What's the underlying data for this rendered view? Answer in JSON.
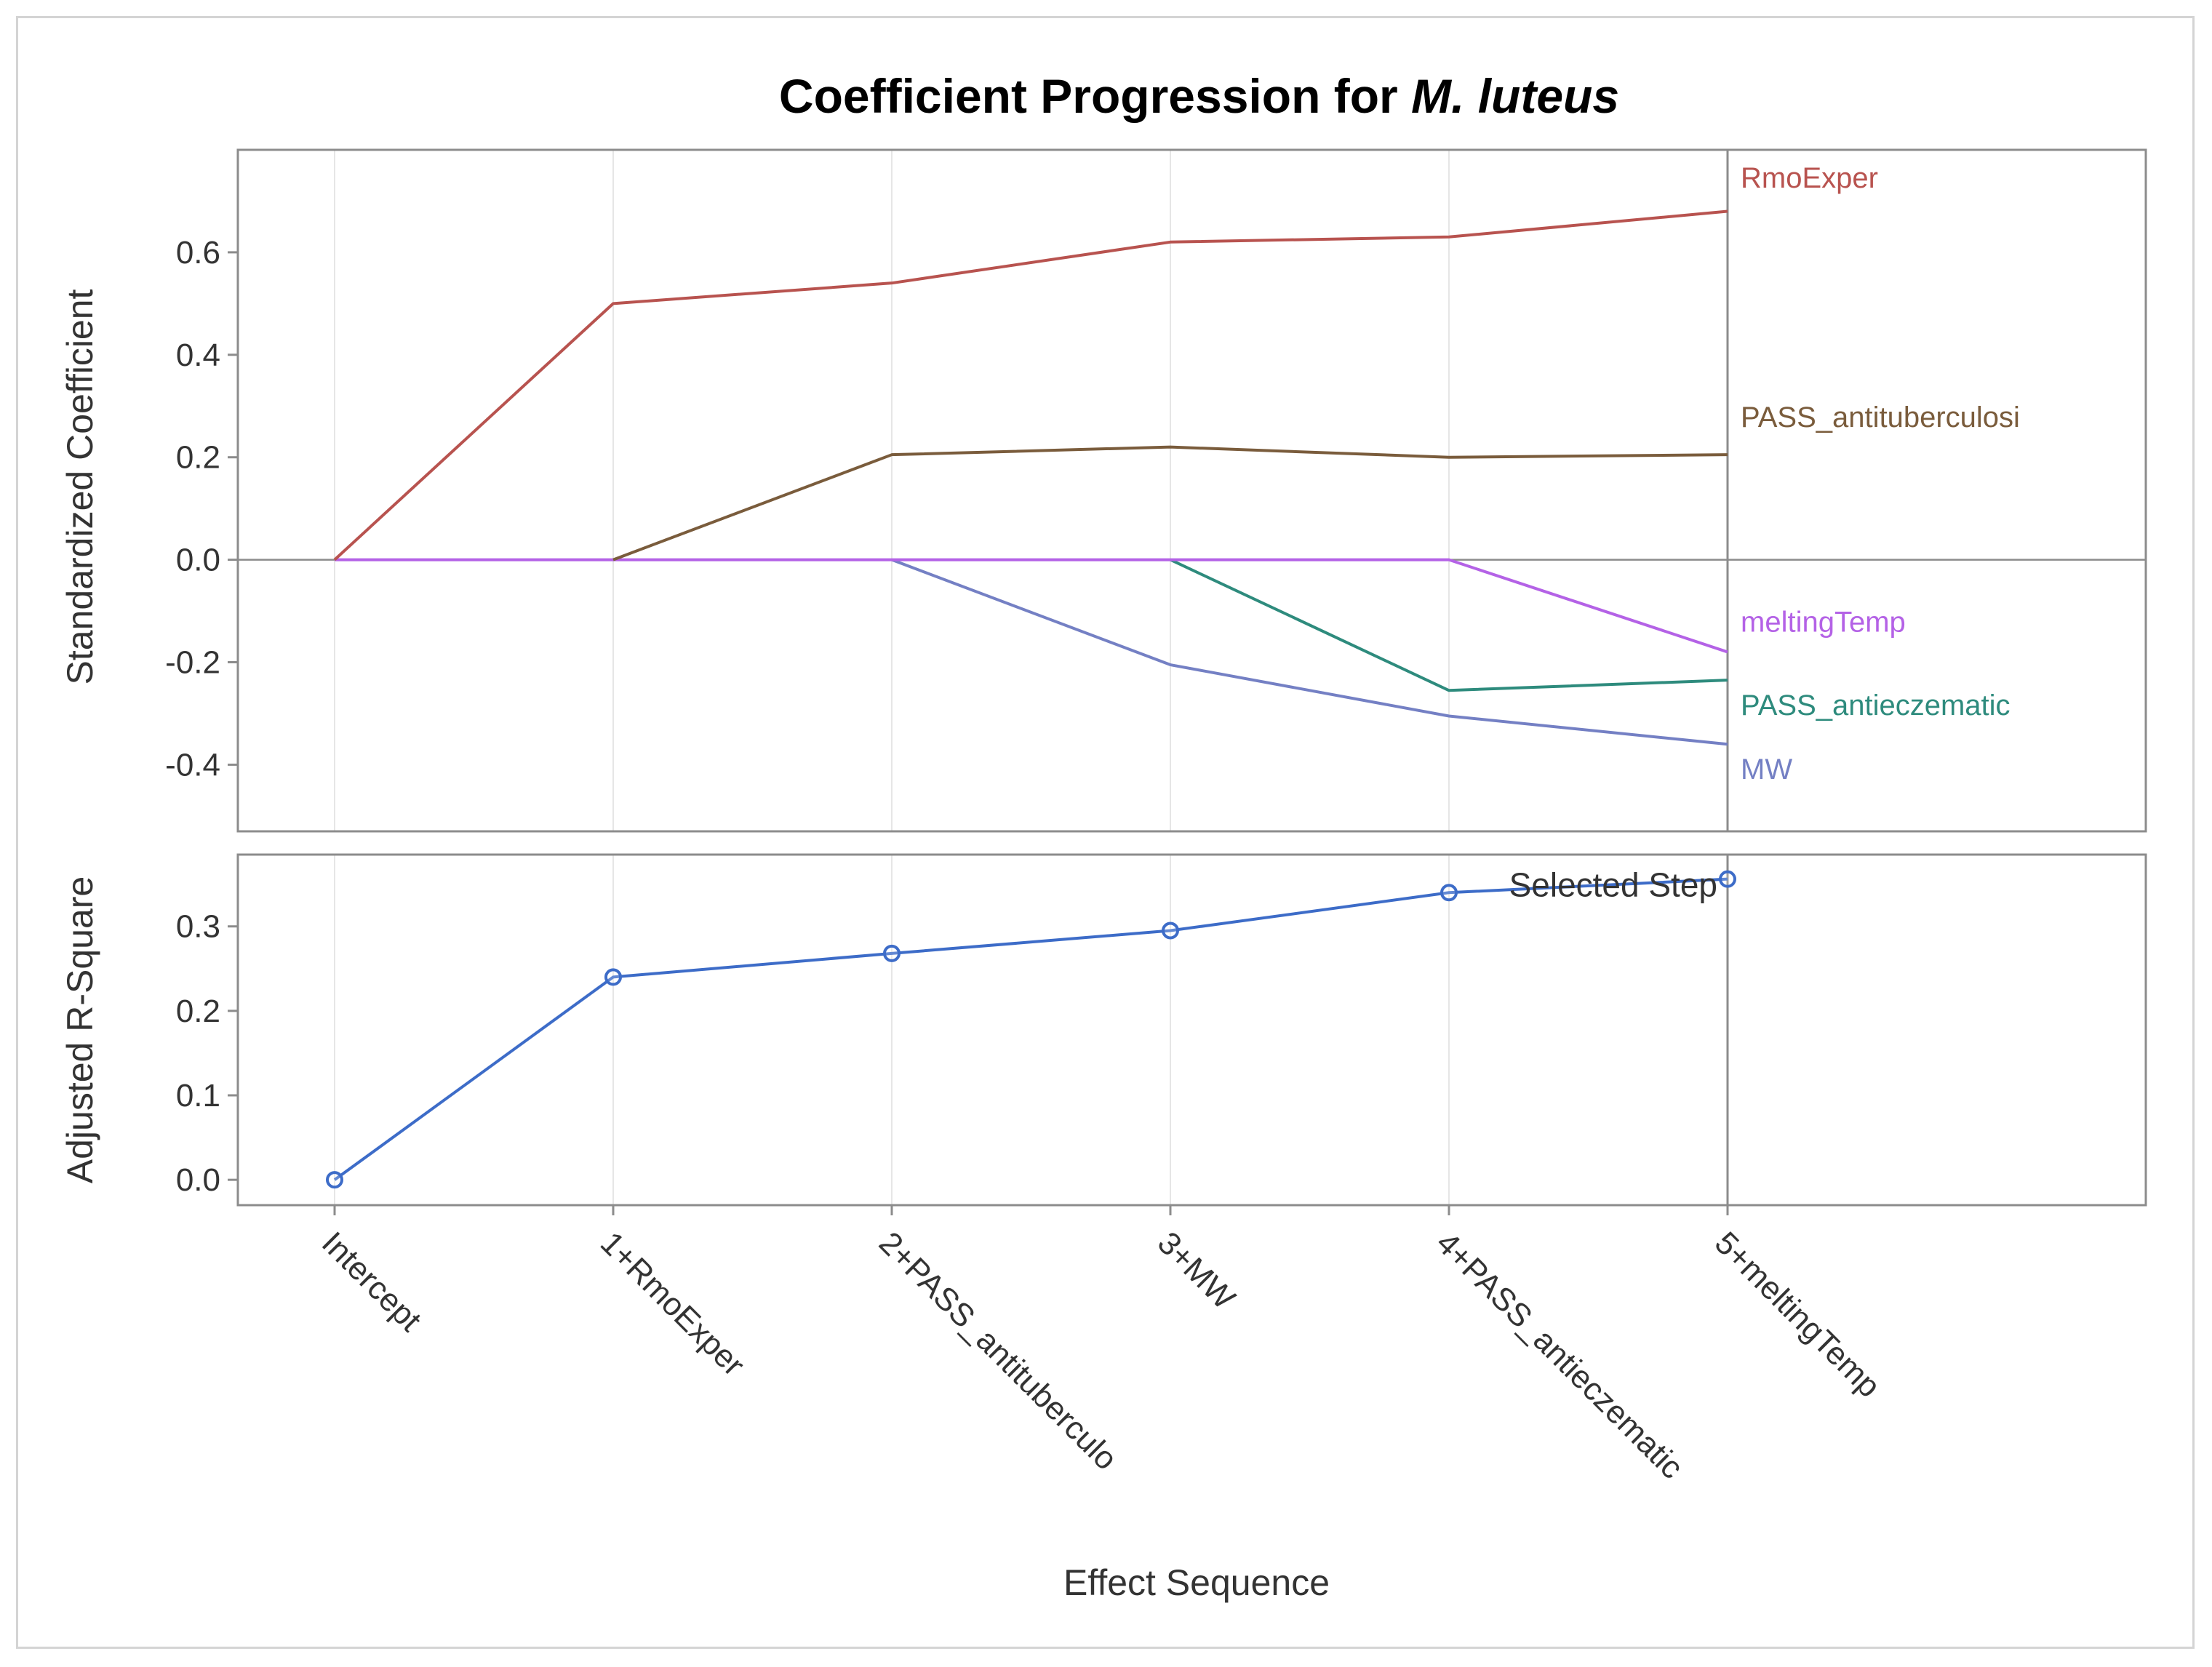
{
  "chart_data": [
    {
      "type": "line",
      "title": "Coefficient Progression for",
      "title_italic": "M. luteus",
      "ylabel": "Standardized Coefficient",
      "ylim": [
        -0.53,
        0.8
      ],
      "yticks": [
        -0.4,
        -0.2,
        0.0,
        0.2,
        0.4,
        0.6
      ],
      "ytick_labels": [
        "-0.4",
        "-0.2",
        "0.0",
        "0.2",
        "0.4",
        "0.6"
      ],
      "zero_line": true,
      "series": [
        {
          "name": "RmoExper",
          "color": "#b8534f",
          "values": [
            0.0,
            0.5,
            0.54,
            0.62,
            0.63,
            0.68
          ]
        },
        {
          "name": "PASS_antituberculosi",
          "color": "#7a5c3c",
          "values": [
            null,
            0.0,
            0.205,
            0.22,
            0.2,
            0.205
          ]
        },
        {
          "name": "meltingTemp",
          "color": "#b462e6",
          "values": [
            0.0,
            0.0,
            0.0,
            0.0,
            0.0,
            -0.18
          ]
        },
        {
          "name": "PASS_antieczematic",
          "color": "#2e8b7d",
          "values": [
            null,
            null,
            null,
            0.0,
            -0.255,
            -0.235
          ]
        },
        {
          "name": "MW",
          "color": "#7480c4",
          "values": [
            null,
            null,
            0.0,
            -0.205,
            -0.305,
            -0.36
          ]
        }
      ]
    },
    {
      "type": "line",
      "ylabel": "Adjusted R-Square",
      "ylim": [
        -0.03,
        0.385
      ],
      "yticks": [
        0.0,
        0.1,
        0.2,
        0.3
      ],
      "ytick_labels": [
        "0.0",
        "0.1",
        "0.2",
        "0.3"
      ],
      "series": [
        {
          "name": "Adjusted R-Square",
          "color": "#3d6cc8",
          "values": [
            0.0,
            0.24,
            0.268,
            0.295,
            0.34,
            0.356
          ]
        }
      ],
      "annotation": "Selected Step"
    }
  ],
  "x_categories": [
    "Intercept",
    "1+RmoExper",
    "2+PASS_antituberculo",
    "3+MW",
    "4+PASS_antieczematic",
    "5+meltingTemp"
  ],
  "xlabel": "Effect Sequence",
  "selected_step_index": 5,
  "colors": {
    "frame_border": "#d4d4d4",
    "panel_border": "#8c8c8c",
    "grid": "#e6e6e6",
    "zero_line": "#8c8c8c",
    "selected_line": "#8c8c8c"
  }
}
